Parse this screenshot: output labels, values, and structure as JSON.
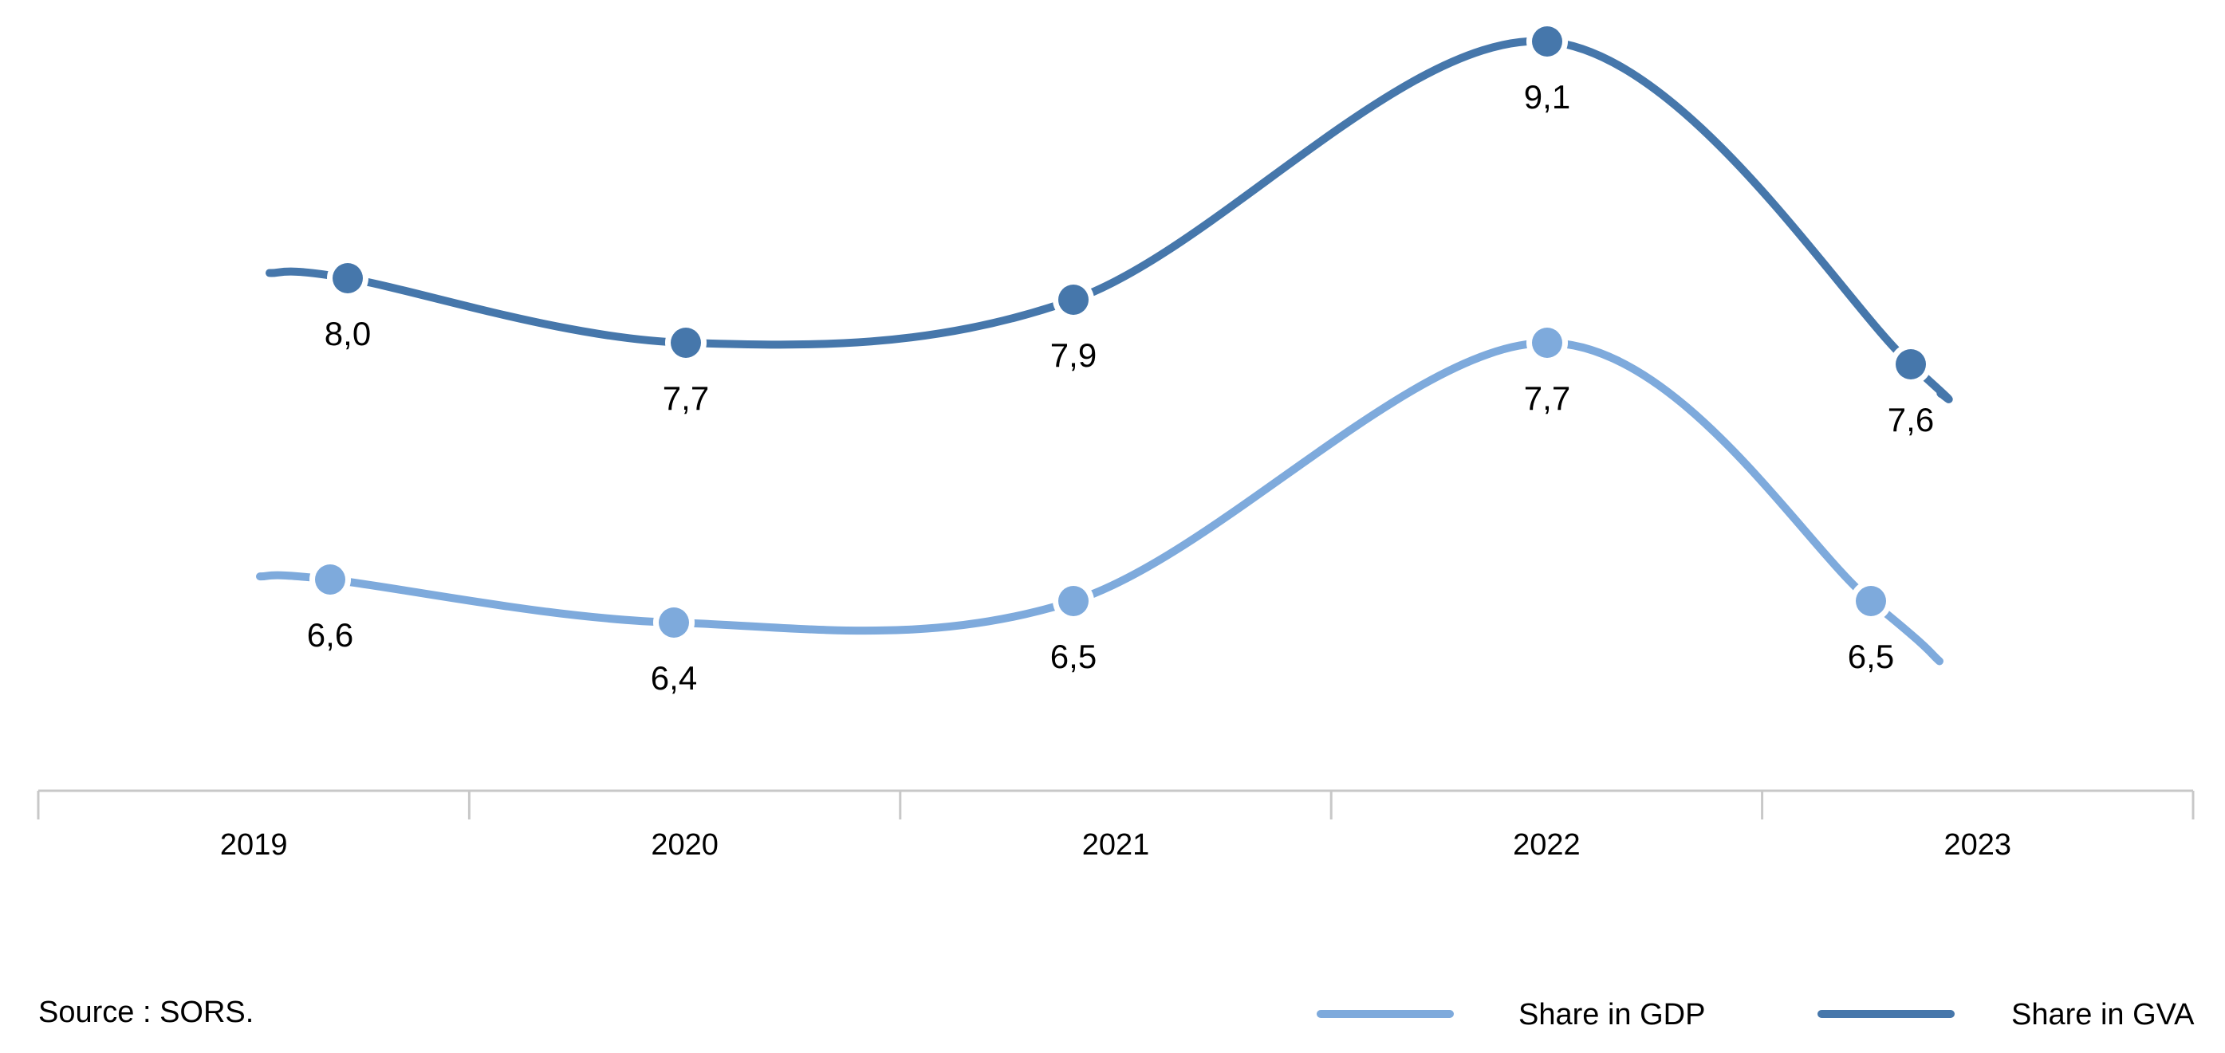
{
  "chart_data": {
    "type": "line",
    "categories": [
      "2019",
      "2020",
      "2021",
      "2022",
      "2023"
    ],
    "series": [
      {
        "name": "Share in GVA",
        "values": [
          8.0,
          7.7,
          7.9,
          9.1,
          7.6
        ],
        "labels": [
          "8,0",
          "7,7",
          "7,9",
          "9,1",
          "7,6"
        ],
        "color": "#4677ab"
      },
      {
        "name": "Share in GDP",
        "values": [
          6.6,
          6.4,
          6.5,
          7.7,
          6.5
        ],
        "labels": [
          "6,6",
          "6,4",
          "6,5",
          "7,7",
          "6,5"
        ],
        "color": "#7eaadc"
      }
    ],
    "legend": {
      "placement": "bottom-right",
      "order": [
        "Share in GDP",
        "Share in GVA"
      ]
    },
    "grid": false,
    "axis_color": "#c8c8c8",
    "title": "",
    "xlabel": "",
    "ylabel": ""
  },
  "footer": {
    "source": "Source : SORS."
  }
}
